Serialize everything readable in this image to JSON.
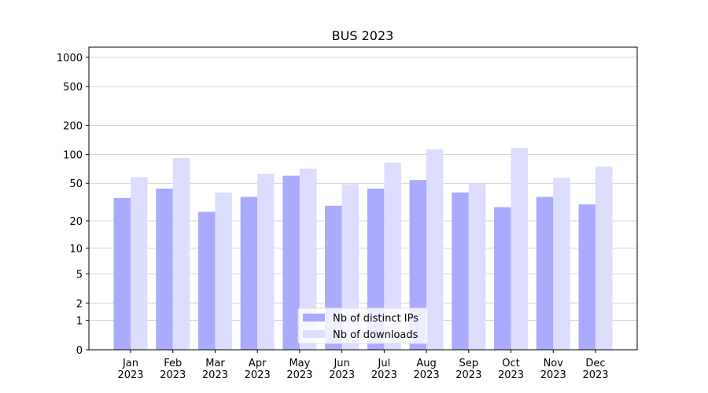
{
  "chart_data": {
    "type": "bar",
    "title": "BUS 2023",
    "categories": [
      "Jan\n2023",
      "Feb\n2023",
      "Mar\n2023",
      "Apr\n2023",
      "May\n2023",
      "Jun\n2023",
      "Jul\n2023",
      "Aug\n2023",
      "Sep\n2023",
      "Oct\n2023",
      "Nov\n2023",
      "Dec\n2023"
    ],
    "series": [
      {
        "name": "Nb of distinct IPs",
        "color": "#aaaaff",
        "values": [
          35,
          44,
          25,
          36,
          60,
          29,
          44,
          54,
          40,
          28,
          36,
          30
        ]
      },
      {
        "name": "Nb of downloads",
        "color": "#ddddff",
        "values": [
          58,
          92,
          40,
          63,
          71,
          49,
          82,
          113,
          50,
          117,
          57,
          75
        ]
      }
    ],
    "yscale": "log1p",
    "ylim": [
      0,
      1270
    ],
    "yticks": [
      0,
      1,
      2,
      5,
      10,
      20,
      50,
      100,
      200,
      500,
      1000
    ],
    "grid": true,
    "legend": "lower center"
  }
}
